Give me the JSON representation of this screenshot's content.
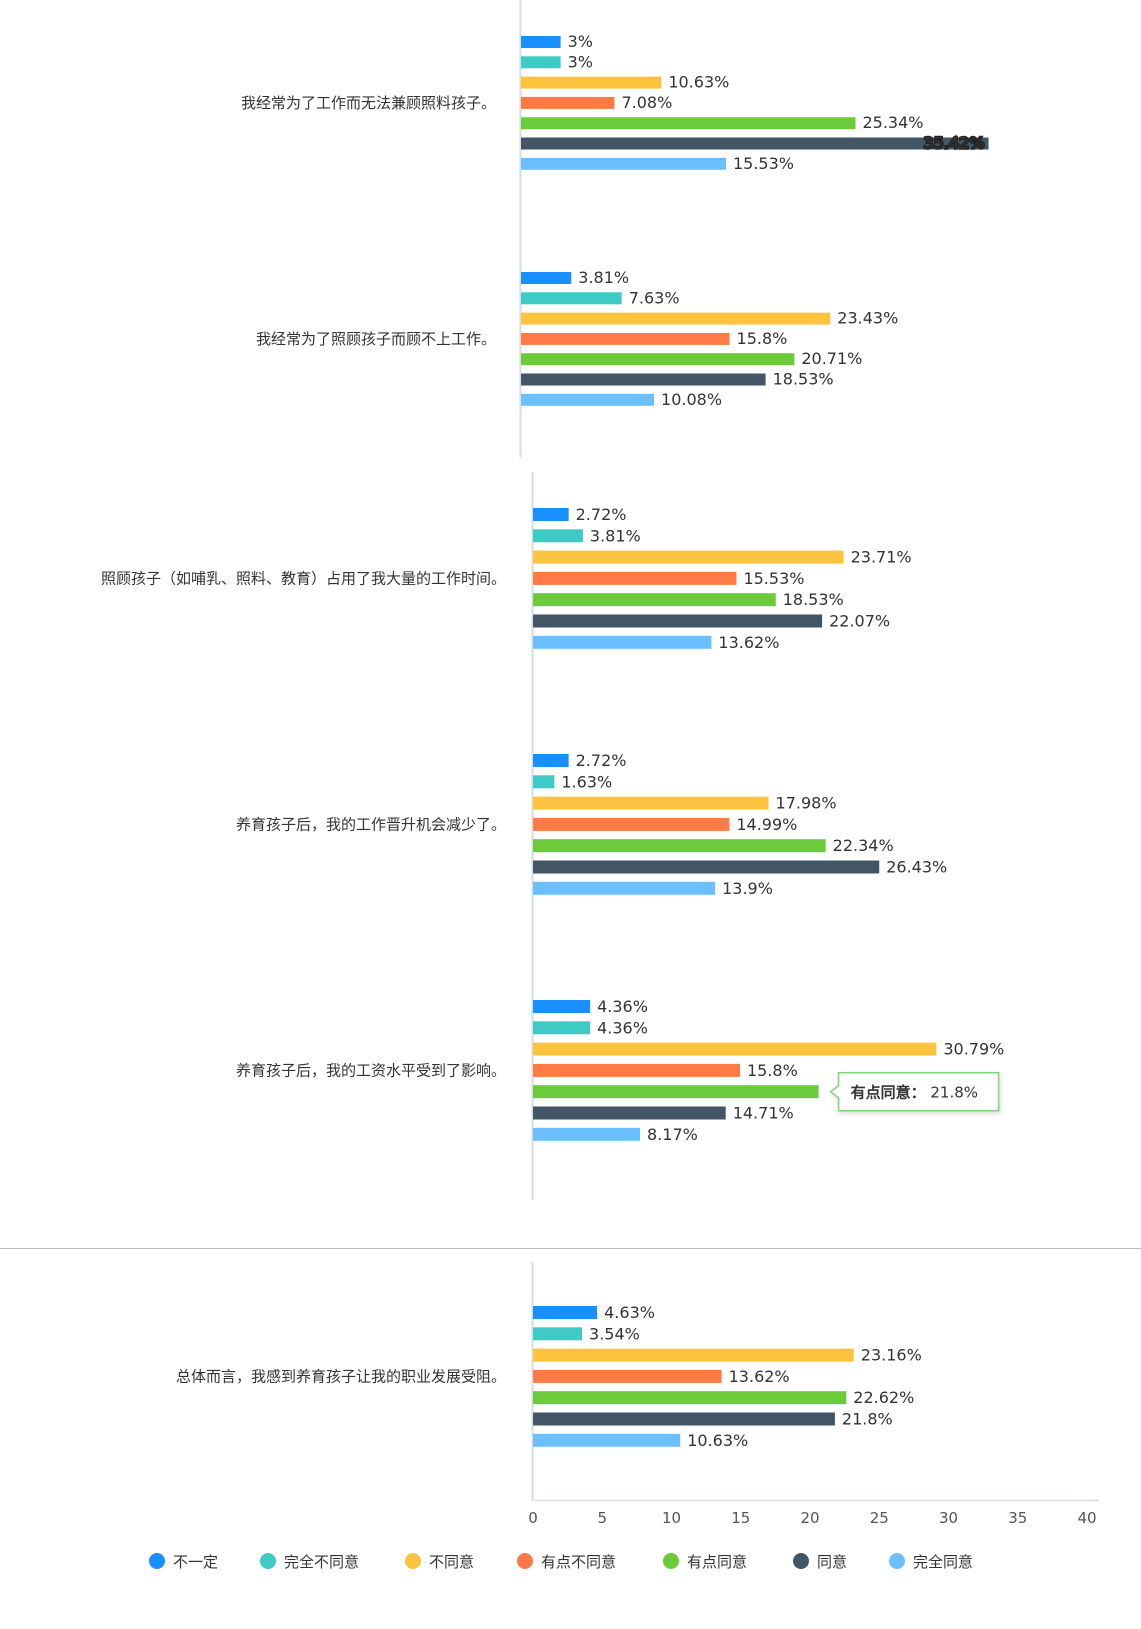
{
  "chart_data": [
    {
      "type": "bar",
      "orientation": "horizontal",
      "categories": [
        "我经常为了工作而无法兼顾照料孩子。",
        "我经常为了照顾孩子而顾不上工作。"
      ],
      "series": [
        {
          "name": "不一定",
          "color": "#1890ff",
          "values": [
            3,
            3.81
          ]
        },
        {
          "name": "完全不同意",
          "color": "#3ecbc6",
          "values": [
            3,
            7.63
          ]
        },
        {
          "name": "不同意",
          "color": "#fcc43e",
          "values": [
            10.63,
            23.43
          ]
        },
        {
          "name": "有点不同意",
          "color": "#ff7a45",
          "values": [
            7.08,
            15.8
          ]
        },
        {
          "name": "有点同意",
          "color": "#6bcb3a",
          "values": [
            25.34,
            20.71
          ]
        },
        {
          "name": "同意",
          "color": "#435665",
          "values": [
            35.42,
            18.53
          ]
        },
        {
          "name": "完全同意",
          "color": "#6cbfff",
          "values": [
            15.53,
            10.08
          ]
        }
      ],
      "data_labels": [
        [
          "3%",
          "3%",
          "10.63%",
          "7.08%",
          "25.34%",
          "35.42%",
          "15.53%"
        ],
        [
          "3.81%",
          "7.63%",
          "23.43%",
          "15.8%",
          "20.71%",
          "18.53%",
          "10.08%"
        ]
      ]
    },
    {
      "type": "bar",
      "orientation": "horizontal",
      "categories": [
        "照顾孩子（如哺乳、照料、教育）占用了我大量的工作时间。",
        "养育孩子后，我的工作晋升机会减少了。",
        "养育孩子后，我的工资水平受到了影响。"
      ],
      "series": [
        {
          "name": "不一定",
          "color": "#1890ff",
          "values": [
            2.72,
            2.72,
            4.36
          ]
        },
        {
          "name": "完全不同意",
          "color": "#3ecbc6",
          "values": [
            3.81,
            1.63,
            4.36
          ]
        },
        {
          "name": "不同意",
          "color": "#fcc43e",
          "values": [
            23.71,
            17.98,
            30.79
          ]
        },
        {
          "name": "有点不同意",
          "color": "#ff7a45",
          "values": [
            15.53,
            14.99,
            15.8
          ]
        },
        {
          "name": "有点同意",
          "color": "#6bcb3a",
          "values": [
            18.53,
            22.34,
            21.8
          ]
        },
        {
          "name": "同意",
          "color": "#435665",
          "values": [
            22.07,
            26.43,
            14.71
          ]
        },
        {
          "name": "完全同意",
          "color": "#6cbfff",
          "values": [
            13.62,
            13.9,
            8.17
          ]
        }
      ],
      "data_labels": [
        [
          "2.72%",
          "3.81%",
          "23.71%",
          "15.53%",
          "18.53%",
          "22.07%",
          "13.62%"
        ],
        [
          "2.72%",
          "1.63%",
          "17.98%",
          "14.99%",
          "22.34%",
          "26.43%",
          "13.9%"
        ],
        [
          "4.36%",
          "4.36%",
          "30.79%",
          "15.8%",
          "",
          "14.71%",
          "8.17%"
        ]
      ],
      "tooltip": {
        "label": "有点同意",
        "separator": "：",
        "value": "21.8%"
      }
    },
    {
      "type": "bar",
      "orientation": "horizontal",
      "categories": [
        "总体而言，我感到养育孩子让我的职业发展受阻。"
      ],
      "series": [
        {
          "name": "不一定",
          "color": "#1890ff",
          "values": [
            4.63
          ]
        },
        {
          "name": "完全不同意",
          "color": "#3ecbc6",
          "values": [
            3.54
          ]
        },
        {
          "name": "不同意",
          "color": "#fcc43e",
          "values": [
            23.16
          ]
        },
        {
          "name": "有点不同意",
          "color": "#ff7a45",
          "values": [
            13.62
          ]
        },
        {
          "name": "有点同意",
          "color": "#6bcb3a",
          "values": [
            22.62
          ]
        },
        {
          "name": "同意",
          "color": "#435665",
          "values": [
            21.8
          ]
        },
        {
          "name": "完全同意",
          "color": "#6cbfff",
          "values": [
            10.63
          ]
        }
      ],
      "data_labels": [
        [
          "4.63%",
          "3.54%",
          "23.16%",
          "13.62%",
          "22.62%",
          "21.8%",
          "10.63%"
        ]
      ],
      "xlim": [
        0,
        40
      ],
      "x_ticks": [
        "0",
        "5",
        "10",
        "15",
        "20",
        "25",
        "30",
        "35",
        "40"
      ]
    }
  ],
  "legend": {
    "placement": "bottom",
    "items": [
      {
        "name": "不一定",
        "color": "#1890ff"
      },
      {
        "name": "完全不同意",
        "color": "#3ecbc6"
      },
      {
        "name": "不同意",
        "color": "#fcc43e"
      },
      {
        "name": "有点不同意",
        "color": "#ff7a45"
      },
      {
        "name": "有点同意",
        "color": "#6bcb3a"
      },
      {
        "name": "同意",
        "color": "#435665"
      },
      {
        "name": "完全同意",
        "color": "#6cbfff"
      }
    ]
  }
}
